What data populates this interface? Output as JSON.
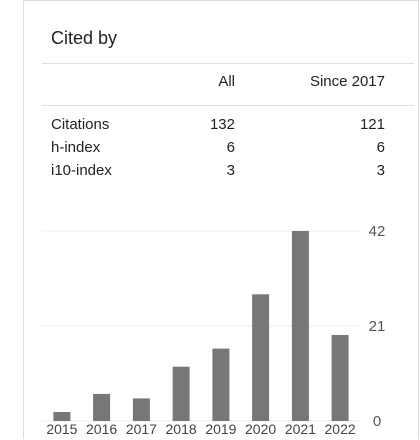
{
  "panel": {
    "title": "Cited by"
  },
  "table": {
    "columns": [
      "",
      "All",
      "Since 2017"
    ],
    "rows": [
      {
        "label": "Citations",
        "all": "132",
        "since": "121"
      },
      {
        "label": "h-index",
        "all": "6",
        "since": "6"
      },
      {
        "label": "i10-index",
        "all": "3",
        "since": "3"
      }
    ]
  },
  "chart_data": {
    "type": "bar",
    "categories": [
      "2015",
      "2016",
      "2017",
      "2018",
      "2019",
      "2020",
      "2021",
      "2022"
    ],
    "values": [
      2,
      6,
      5,
      12,
      16,
      28,
      42,
      19
    ],
    "yticks": [
      0,
      21,
      42
    ],
    "ylim": [
      0,
      42
    ],
    "grid": true,
    "bar_color": "#777777"
  }
}
